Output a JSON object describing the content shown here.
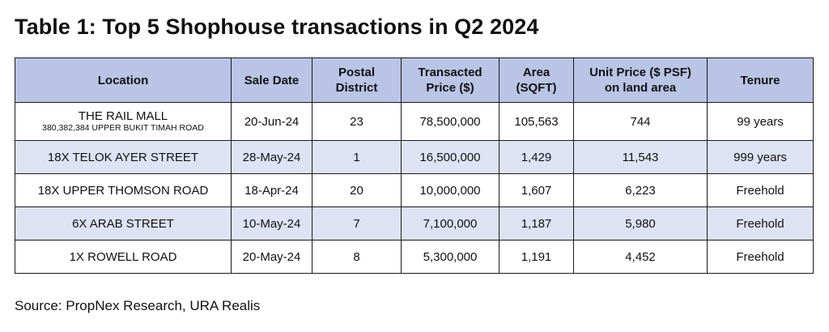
{
  "title": "Table 1: Top 5 Shophouse transactions in Q2 2024",
  "table": {
    "headers": [
      "Location",
      "Sale Date",
      "Postal\nDistrict",
      "Transacted\nPrice ($)",
      "Area\n(SQFT)",
      "Unit Price ($ PSF)\non land area",
      "Tenure"
    ],
    "rows": [
      {
        "location": "THE RAIL MALL",
        "location_detail": "380,382,384 UPPER BUKIT TIMAH ROAD",
        "sale_date": "20-Jun-24",
        "postal_district": "23",
        "transacted_price": "78,500,000",
        "area": "105,563",
        "unit_price": "744",
        "tenure": "99 years"
      },
      {
        "location": "18X TELOK AYER STREET",
        "sale_date": "28-May-24",
        "postal_district": "1",
        "transacted_price": "16,500,000",
        "area": "1,429",
        "unit_price": "11,543",
        "tenure": "999 years"
      },
      {
        "location": "18X UPPER THOMSON ROAD",
        "sale_date": "18-Apr-24",
        "postal_district": "20",
        "transacted_price": "10,000,000",
        "area": "1,607",
        "unit_price": "6,223",
        "tenure": "Freehold"
      },
      {
        "location": "6X ARAB STREET",
        "sale_date": "10-May-24",
        "postal_district": "7",
        "transacted_price": "7,100,000",
        "area": "1,187",
        "unit_price": "5,980",
        "tenure": "Freehold"
      },
      {
        "location": "1X ROWELL ROAD",
        "sale_date": "20-May-24",
        "postal_district": "8",
        "transacted_price": "5,300,000",
        "area": "1,191",
        "unit_price": "4,452",
        "tenure": "Freehold"
      }
    ]
  },
  "source": "Source: PropNex Research, URA Realis",
  "colors": {
    "header_bg": "#b9c4e6",
    "shaded_row_bg": "#dde3f3",
    "border": "#1a1a1a"
  }
}
